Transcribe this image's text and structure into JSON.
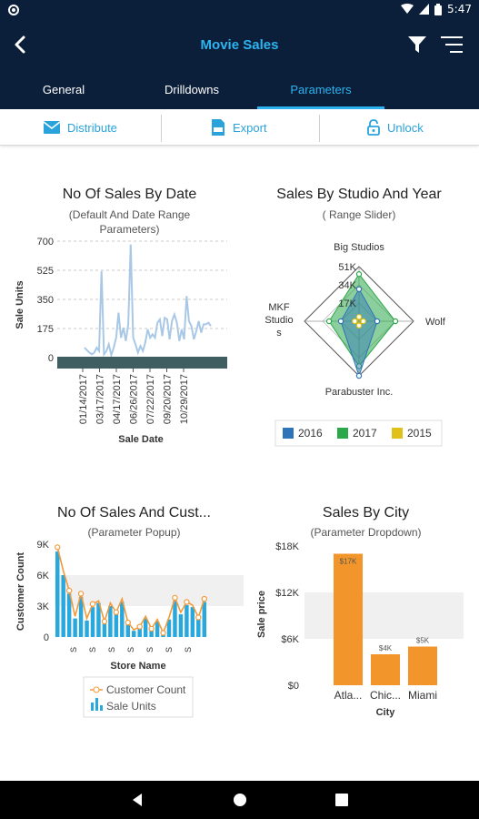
{
  "status": {
    "time": "5:47"
  },
  "header": {
    "title": "Movie Sales"
  },
  "tabs": [
    {
      "label": "General"
    },
    {
      "label": "Drilldowns"
    },
    {
      "label": "Parameters"
    }
  ],
  "toolbar": {
    "distribute": "Distribute",
    "export": "Export",
    "unlock": "Unlock"
  },
  "colors": {
    "header_bg": "#0c1f3a",
    "accent": "#2db3f0"
  },
  "chart_data": [
    {
      "type": "line",
      "title": "No Of Sales By Date",
      "subtitle": "(Default And Date Range Parameters)",
      "xlabel": "Sale Date",
      "ylabel": "Sale Units",
      "ylim": [
        0,
        700
      ],
      "yticks": [
        0,
        175,
        350,
        525,
        700
      ],
      "ytick_labels": [
        "0",
        "175",
        "350",
        "525",
        "700"
      ],
      "xtick_labels": [
        "01/14/2017",
        "03/17/2017",
        "04/17/2017",
        "06/26/2017",
        "07/22/2017",
        "09/20/2017",
        "10/29/2017"
      ],
      "series": [
        {
          "values": [
            60,
            45,
            30,
            20,
            30,
            60,
            40,
            520,
            20,
            40,
            80,
            15,
            60,
            120,
            270,
            120,
            180,
            100,
            200,
            680,
            120,
            80,
            30,
            70,
            40,
            90,
            170,
            120,
            140,
            120,
            210,
            230,
            130,
            240,
            230,
            110,
            220,
            260,
            210,
            100,
            170,
            110,
            370,
            220,
            190,
            110,
            160,
            220,
            150,
            200,
            200,
            210,
            190
          ]
        }
      ]
    },
    {
      "type": "radar",
      "title": "Sales By Studio And Year",
      "subtitle": "( Range Slider)",
      "axes": [
        "Big Studios",
        "Wolf",
        "Parabuster Inc.",
        "MKF Studios"
      ],
      "ticks": [
        "51K",
        "34K",
        "17K"
      ],
      "legend": [
        "2016",
        "2017",
        "2015"
      ],
      "series": [
        {
          "name": "2016",
          "color": "#2f73b8",
          "values": [
            30,
            17,
            51,
            17
          ]
        },
        {
          "name": "2017",
          "color": "#2aa84a",
          "values": [
            44,
            34,
            42,
            28
          ]
        },
        {
          "name": "2015",
          "color": "#e0c118",
          "values": [
            4,
            4,
            4,
            4
          ]
        }
      ]
    },
    {
      "type": "bar",
      "title": "No Of Sales And Cust...",
      "subtitle": "(Parameter Popup)",
      "xlabel": "Store Name",
      "ylabel": "Customer Count",
      "ylim": [
        0,
        9000
      ],
      "ytick_labels": [
        "0",
        "3K",
        "6K",
        "9K"
      ],
      "xtick_label": "S",
      "legend": [
        "Customer Count",
        "Sale Units"
      ],
      "series": [
        {
          "name": "Customer Count",
          "values": [
            8700,
            6400,
            4500,
            2000,
            4200,
            1800,
            3200,
            3500,
            1500,
            3300,
            2400,
            3700,
            1400,
            700,
            1000,
            2000,
            800,
            1700,
            400,
            1900,
            3800,
            2400,
            3400,
            3100,
            1900,
            3700
          ]
        },
        {
          "name": "Sale Units",
          "values": [
            8300,
            6000,
            4200,
            1800,
            3900,
            1600,
            2900,
            3300,
            1300,
            3000,
            2200,
            3400,
            1300,
            600,
            900,
            1800,
            700,
            1500,
            350,
            1700,
            3500,
            2200,
            3100,
            2900,
            1700,
            3400
          ]
        }
      ]
    },
    {
      "type": "bar",
      "title": "Sales By City",
      "subtitle": "(Parameter Dropdown)",
      "xlabel": "City",
      "ylabel": "Sale price",
      "ylim": [
        0,
        18000
      ],
      "ytick_labels": [
        "$0",
        "$6K",
        "$12K",
        "$18K"
      ],
      "categories": [
        "Atla...",
        "Chic...",
        "Miami"
      ],
      "values": [
        17000,
        4000,
        5000
      ],
      "data_labels": [
        "$17K",
        "$4K",
        "$5K"
      ]
    }
  ]
}
